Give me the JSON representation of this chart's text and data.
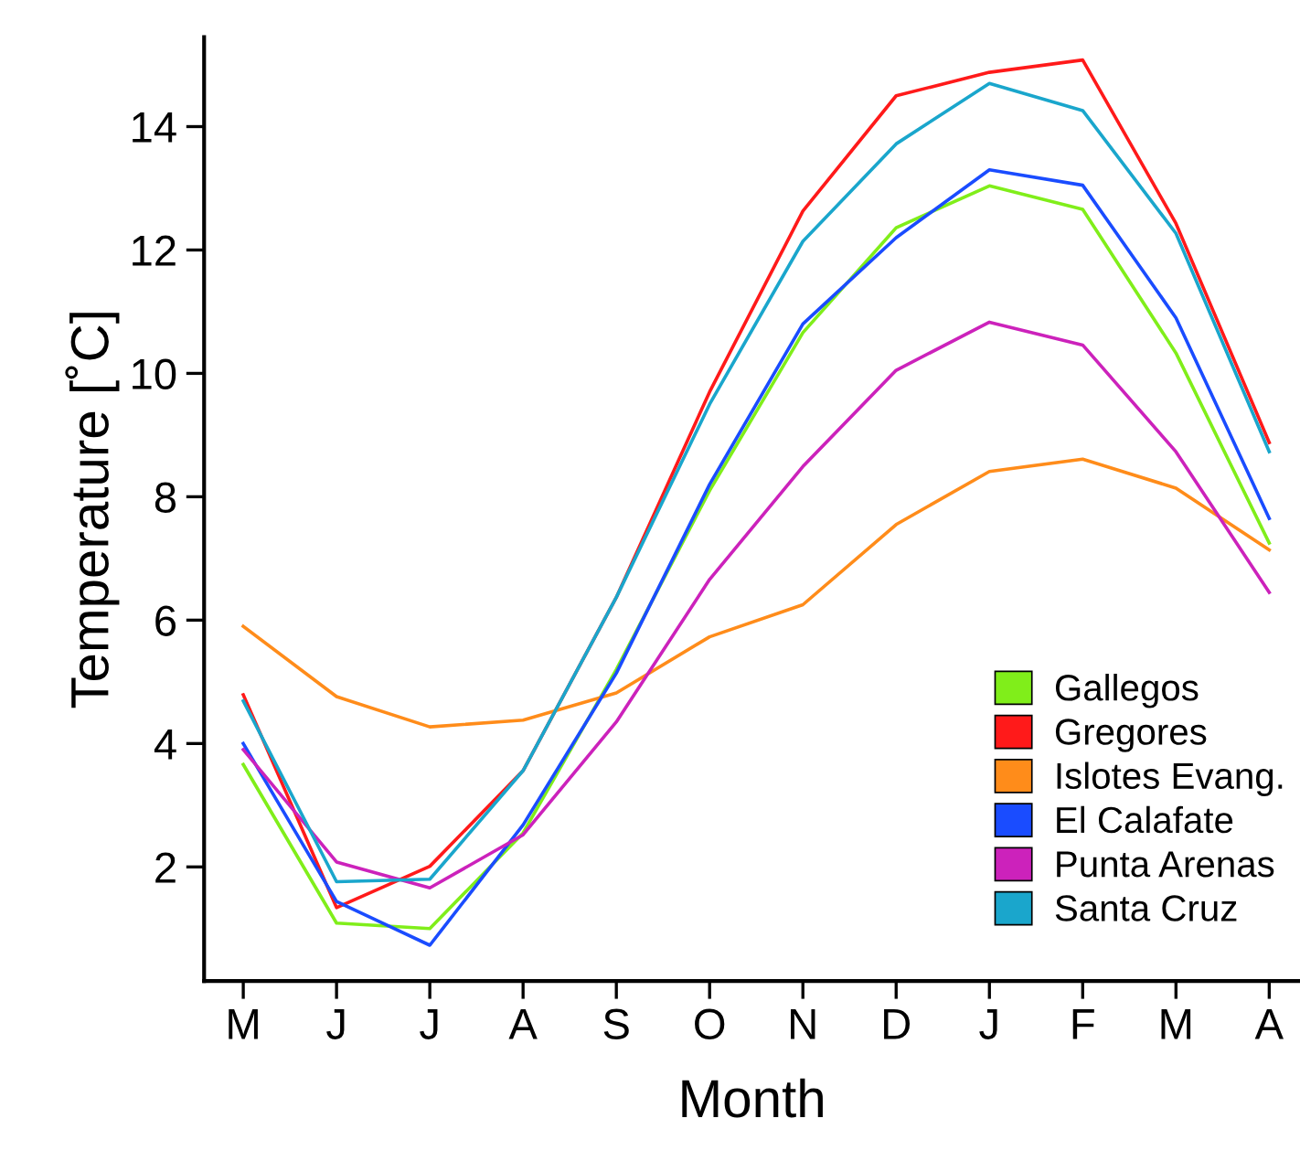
{
  "chart_data": {
    "type": "line",
    "xlabel": "Month",
    "ylabel": "Temperature [˚C]",
    "categories": [
      "M",
      "J",
      "J",
      "A",
      "S",
      "O",
      "N",
      "D",
      "J",
      "F",
      "M",
      "A"
    ],
    "ylim": [
      0.15,
      15.45
    ],
    "yticks": [
      2,
      4,
      6,
      8,
      10,
      12,
      14
    ],
    "grid": false,
    "legend": "bottom right",
    "marker": "none",
    "line_style": "solid",
    "series": [
      {
        "name": "Gallegos",
        "color": "#80ee1a",
        "values": [
          3.66,
          1.09,
          1.0,
          2.55,
          5.2,
          8.1,
          10.66,
          12.36,
          13.04,
          12.66,
          10.33,
          7.25
        ]
      },
      {
        "name": "Gregores",
        "color": "#ff1a1a",
        "values": [
          4.79,
          1.34,
          2.01,
          3.56,
          6.37,
          9.7,
          12.63,
          14.5,
          14.88,
          15.08,
          12.43,
          8.88
        ]
      },
      {
        "name": "Islotes Evang.",
        "color": "#ff8c1a",
        "values": [
          5.9,
          4.76,
          4.27,
          4.38,
          4.82,
          5.73,
          6.25,
          7.55,
          8.41,
          8.61,
          8.14,
          7.14
        ]
      },
      {
        "name": "El Calafate",
        "color": "#1a4cff",
        "values": [
          4.0,
          1.44,
          0.73,
          2.68,
          5.14,
          8.2,
          10.8,
          12.2,
          13.3,
          13.05,
          10.9,
          7.65
        ]
      },
      {
        "name": "Punta Arenas",
        "color": "#cc22bb",
        "values": [
          3.9,
          2.08,
          1.66,
          2.52,
          4.35,
          6.66,
          8.49,
          10.05,
          10.83,
          10.46,
          8.73,
          6.45
        ]
      },
      {
        "name": "Santa Cruz",
        "color": "#1aa6cc",
        "values": [
          4.69,
          1.76,
          1.8,
          3.56,
          6.37,
          9.5,
          12.14,
          13.72,
          14.7,
          14.26,
          12.27,
          8.73
        ]
      }
    ]
  }
}
